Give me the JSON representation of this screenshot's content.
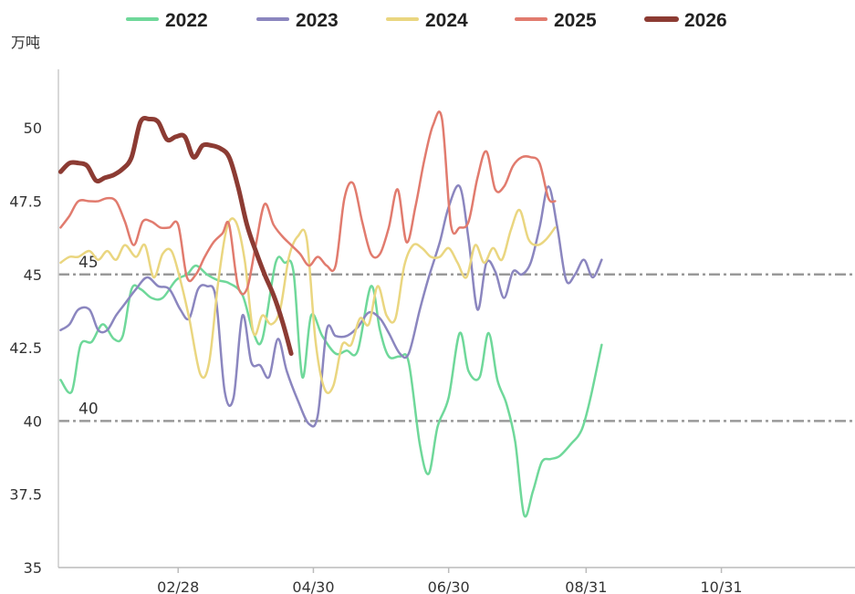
{
  "chart_data": {
    "type": "line",
    "y_unit": "万吨",
    "ylim": [
      35,
      52
    ],
    "y_ticks": [
      35,
      37.5,
      40,
      42.5,
      45,
      47.5,
      50
    ],
    "y_tick_labels": [
      "35",
      "37.5",
      "40",
      "42.5",
      "45",
      "47.5",
      "50"
    ],
    "x_range": [
      5,
      365
    ],
    "x_ticks": [
      {
        "day": 59,
        "label": "02/28"
      },
      {
        "day": 120,
        "label": "04/30"
      },
      {
        "day": 181,
        "label": "06/30"
      },
      {
        "day": 243,
        "label": "08/31"
      },
      {
        "day": 304,
        "label": "10/31"
      }
    ],
    "reference_lines": [
      {
        "value": 45,
        "label": "45"
      },
      {
        "value": 40,
        "label": "40"
      }
    ],
    "legend_position": "top",
    "series": [
      {
        "name": "2022",
        "color": "#6fd89a",
        "width": 2.5,
        "points": [
          [
            6,
            41.4
          ],
          [
            11,
            41.0
          ],
          [
            15,
            42.6
          ],
          [
            20,
            42.7
          ],
          [
            25,
            43.3
          ],
          [
            30,
            42.8
          ],
          [
            34,
            42.9
          ],
          [
            38,
            44.5
          ],
          [
            42,
            44.5
          ],
          [
            47,
            44.2
          ],
          [
            52,
            44.2
          ],
          [
            58,
            44.8
          ],
          [
            63,
            45.0
          ],
          [
            67,
            45.3
          ],
          [
            72,
            45.0
          ],
          [
            77,
            44.8
          ],
          [
            82,
            44.7
          ],
          [
            88,
            44.3
          ],
          [
            93,
            43.0
          ],
          [
            97,
            42.8
          ],
          [
            103,
            45.4
          ],
          [
            107,
            45.4
          ],
          [
            111,
            45.1
          ],
          [
            115,
            41.5
          ],
          [
            119,
            43.6
          ],
          [
            124,
            42.9
          ],
          [
            130,
            42.3
          ],
          [
            135,
            42.4
          ],
          [
            140,
            42.4
          ],
          [
            146,
            44.6
          ],
          [
            150,
            43.1
          ],
          [
            154,
            42.2
          ],
          [
            159,
            42.2
          ],
          [
            163,
            42.0
          ],
          [
            168,
            39.2
          ],
          [
            172,
            38.2
          ],
          [
            176,
            39.8
          ],
          [
            181,
            40.8
          ],
          [
            186,
            43.0
          ],
          [
            190,
            41.7
          ],
          [
            195,
            41.5
          ],
          [
            199,
            43.0
          ],
          [
            203,
            41.4
          ],
          [
            207,
            40.6
          ],
          [
            211,
            39.3
          ],
          [
            215,
            36.8
          ],
          [
            219,
            37.6
          ],
          [
            223,
            38.6
          ],
          [
            227,
            38.7
          ],
          [
            231,
            38.8
          ],
          [
            236,
            39.2
          ],
          [
            241,
            39.7
          ],
          [
            245,
            40.8
          ],
          [
            250,
            42.6
          ]
        ]
      },
      {
        "name": "2023",
        "color": "#8b86bf",
        "width": 2.5,
        "points": [
          [
            6,
            43.1
          ],
          [
            10,
            43.3
          ],
          [
            14,
            43.8
          ],
          [
            19,
            43.8
          ],
          [
            23,
            43.1
          ],
          [
            27,
            43.1
          ],
          [
            31,
            43.6
          ],
          [
            35,
            44.0
          ],
          [
            40,
            44.5
          ],
          [
            45,
            44.9
          ],
          [
            50,
            44.6
          ],
          [
            55,
            44.5
          ],
          [
            60,
            43.8
          ],
          [
            64,
            43.5
          ],
          [
            68,
            44.5
          ],
          [
            72,
            44.6
          ],
          [
            76,
            44.2
          ],
          [
            80,
            41.0
          ],
          [
            84,
            40.8
          ],
          [
            88,
            43.6
          ],
          [
            92,
            42.0
          ],
          [
            96,
            41.9
          ],
          [
            100,
            41.5
          ],
          [
            104,
            42.8
          ],
          [
            108,
            41.7
          ],
          [
            113,
            40.7
          ],
          [
            118,
            39.9
          ],
          [
            122,
            40.2
          ],
          [
            126,
            43.1
          ],
          [
            130,
            42.9
          ],
          [
            135,
            42.9
          ],
          [
            140,
            43.2
          ],
          [
            145,
            43.7
          ],
          [
            150,
            43.5
          ],
          [
            154,
            43.0
          ],
          [
            159,
            42.3
          ],
          [
            163,
            42.3
          ],
          [
            168,
            43.8
          ],
          [
            172,
            44.9
          ],
          [
            177,
            46.1
          ],
          [
            181,
            47.3
          ],
          [
            186,
            48.0
          ],
          [
            190,
            46.2
          ],
          [
            194,
            43.8
          ],
          [
            198,
            45.4
          ],
          [
            202,
            45.1
          ],
          [
            206,
            44.2
          ],
          [
            210,
            45.1
          ],
          [
            214,
            45.0
          ],
          [
            218,
            45.4
          ],
          [
            222,
            46.6
          ],
          [
            226,
            48.0
          ],
          [
            230,
            46.6
          ],
          [
            234,
            44.8
          ],
          [
            238,
            45.0
          ],
          [
            242,
            45.5
          ],
          [
            246,
            44.9
          ],
          [
            250,
            45.5
          ]
        ]
      },
      {
        "name": "2024",
        "color": "#ead680",
        "width": 2.5,
        "points": [
          [
            6,
            45.4
          ],
          [
            10,
            45.6
          ],
          [
            14,
            45.6
          ],
          [
            19,
            45.8
          ],
          [
            23,
            45.5
          ],
          [
            27,
            45.8
          ],
          [
            31,
            45.5
          ],
          [
            35,
            46.0
          ],
          [
            40,
            45.6
          ],
          [
            44,
            46.0
          ],
          [
            48,
            44.9
          ],
          [
            52,
            45.7
          ],
          [
            56,
            45.8
          ],
          [
            60,
            44.8
          ],
          [
            64,
            43.5
          ],
          [
            69,
            41.6
          ],
          [
            73,
            42.0
          ],
          [
            77,
            44.7
          ],
          [
            81,
            46.6
          ],
          [
            85,
            46.8
          ],
          [
            89,
            45.5
          ],
          [
            93,
            43.0
          ],
          [
            97,
            43.6
          ],
          [
            101,
            43.3
          ],
          [
            105,
            43.8
          ],
          [
            109,
            45.6
          ],
          [
            113,
            46.3
          ],
          [
            117,
            46.2
          ],
          [
            121,
            42.7
          ],
          [
            125,
            41.1
          ],
          [
            129,
            41.2
          ],
          [
            133,
            42.6
          ],
          [
            137,
            42.6
          ],
          [
            141,
            43.5
          ],
          [
            145,
            43.3
          ],
          [
            149,
            44.6
          ],
          [
            153,
            43.6
          ],
          [
            157,
            43.5
          ],
          [
            161,
            45.3
          ],
          [
            165,
            46.0
          ],
          [
            169,
            45.9
          ],
          [
            173,
            45.6
          ],
          [
            177,
            45.6
          ],
          [
            181,
            45.9
          ],
          [
            185,
            45.4
          ],
          [
            189,
            44.9
          ],
          [
            193,
            46.0
          ],
          [
            197,
            45.4
          ],
          [
            201,
            45.9
          ],
          [
            205,
            45.5
          ],
          [
            209,
            46.5
          ],
          [
            213,
            47.2
          ],
          [
            217,
            46.2
          ],
          [
            221,
            46.0
          ],
          [
            225,
            46.2
          ],
          [
            229,
            46.6
          ]
        ]
      },
      {
        "name": "2025",
        "color": "#e17b6e",
        "width": 2.5,
        "points": [
          [
            6,
            46.6
          ],
          [
            10,
            47.0
          ],
          [
            14,
            47.5
          ],
          [
            19,
            47.5
          ],
          [
            23,
            47.5
          ],
          [
            27,
            47.6
          ],
          [
            31,
            47.5
          ],
          [
            35,
            46.8
          ],
          [
            39,
            46.0
          ],
          [
            43,
            46.8
          ],
          [
            47,
            46.8
          ],
          [
            51,
            46.6
          ],
          [
            55,
            46.6
          ],
          [
            59,
            46.7
          ],
          [
            63,
            44.9
          ],
          [
            67,
            45.0
          ],
          [
            71,
            45.6
          ],
          [
            75,
            46.1
          ],
          [
            79,
            46.4
          ],
          [
            82,
            46.7
          ],
          [
            86,
            44.6
          ],
          [
            90,
            44.5
          ],
          [
            94,
            46.0
          ],
          [
            98,
            47.4
          ],
          [
            102,
            46.7
          ],
          [
            106,
            46.3
          ],
          [
            110,
            46.0
          ],
          [
            114,
            45.7
          ],
          [
            118,
            45.3
          ],
          [
            122,
            45.6
          ],
          [
            126,
            45.3
          ],
          [
            130,
            45.3
          ],
          [
            134,
            47.6
          ],
          [
            138,
            48.1
          ],
          [
            142,
            46.8
          ],
          [
            146,
            45.7
          ],
          [
            150,
            45.7
          ],
          [
            154,
            46.6
          ],
          [
            158,
            47.9
          ],
          [
            162,
            46.1
          ],
          [
            166,
            47.3
          ],
          [
            170,
            48.9
          ],
          [
            174,
            50.1
          ],
          [
            178,
            50.3
          ],
          [
            182,
            46.7
          ],
          [
            186,
            46.6
          ],
          [
            190,
            46.8
          ],
          [
            194,
            48.3
          ],
          [
            198,
            49.2
          ],
          [
            202,
            47.9
          ],
          [
            206,
            48.0
          ],
          [
            210,
            48.7
          ],
          [
            214,
            49.0
          ],
          [
            218,
            49.0
          ],
          [
            222,
            48.8
          ],
          [
            226,
            47.6
          ],
          [
            229,
            47.5
          ]
        ]
      },
      {
        "name": "2026",
        "color": "#8c3b33",
        "width": 5,
        "points": [
          [
            6,
            48.5
          ],
          [
            10,
            48.8
          ],
          [
            14,
            48.8
          ],
          [
            18,
            48.7
          ],
          [
            22,
            48.2
          ],
          [
            26,
            48.3
          ],
          [
            30,
            48.4
          ],
          [
            34,
            48.6
          ],
          [
            38,
            49.0
          ],
          [
            42,
            50.2
          ],
          [
            46,
            50.3
          ],
          [
            50,
            50.2
          ],
          [
            54,
            49.6
          ],
          [
            58,
            49.7
          ],
          [
            62,
            49.7
          ],
          [
            66,
            49.0
          ],
          [
            70,
            49.4
          ],
          [
            74,
            49.4
          ],
          [
            78,
            49.3
          ],
          [
            82,
            49.0
          ],
          [
            86,
            48.0
          ],
          [
            90,
            46.7
          ],
          [
            94,
            45.8
          ],
          [
            98,
            45.0
          ],
          [
            102,
            44.3
          ],
          [
            106,
            43.4
          ],
          [
            110,
            42.3
          ]
        ]
      }
    ]
  }
}
